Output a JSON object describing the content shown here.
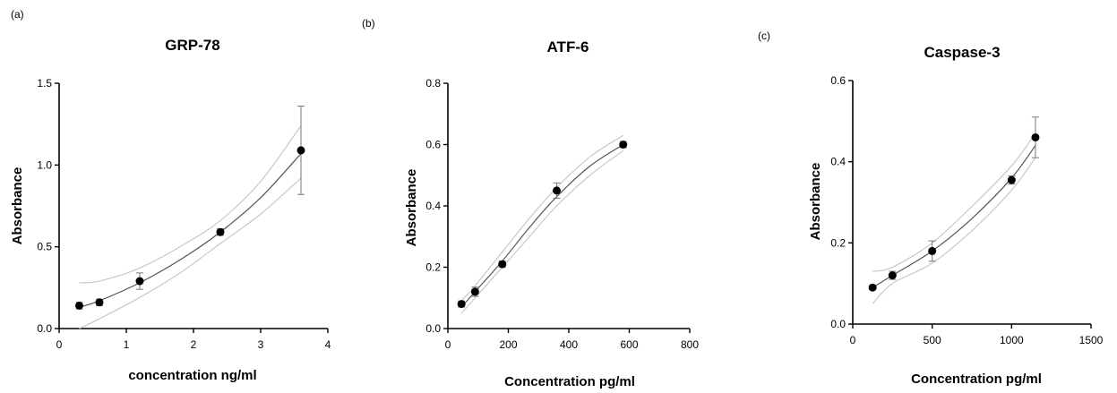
{
  "chart_data": [
    {
      "type": "scatter",
      "panel_label": "(a)",
      "title": "GRP-78",
      "xlabel": "concentration ng/ml",
      "ylabel": "Absorbance",
      "xlim": [
        0,
        4
      ],
      "ylim": [
        0,
        1.5
      ],
      "xticks": [
        0,
        1,
        2,
        3,
        4
      ],
      "xtick_labels": [
        "0",
        "1",
        "2",
        "3",
        "4"
      ],
      "yticks": [
        0,
        0.5,
        1.0,
        1.5
      ],
      "ytick_labels": [
        "0.0",
        "0.5",
        "1.0",
        "1.5"
      ],
      "grid": false,
      "points": [
        {
          "x": 0.3,
          "y": 0.14,
          "err": 0.02
        },
        {
          "x": 0.6,
          "y": 0.16,
          "err": 0.02
        },
        {
          "x": 1.2,
          "y": 0.29,
          "err": 0.05
        },
        {
          "x": 2.4,
          "y": 0.59,
          "err": 0.02
        },
        {
          "x": 3.6,
          "y": 1.09,
          "err": 0.27
        }
      ],
      "fit": {
        "x": [
          0.3,
          0.6,
          1.2,
          1.8,
          2.4,
          3.0,
          3.6
        ],
        "y": [
          0.13,
          0.17,
          0.28,
          0.42,
          0.59,
          0.8,
          1.07
        ]
      },
      "upper_band": {
        "x": [
          0.3,
          0.6,
          1.2,
          1.8,
          2.4,
          3.0,
          3.6
        ],
        "y": [
          0.28,
          0.29,
          0.37,
          0.5,
          0.66,
          0.9,
          1.24
        ]
      },
      "lower_band": {
        "x": [
          0.3,
          0.6,
          1.2,
          1.8,
          2.4,
          3.0,
          3.6
        ],
        "y": [
          0.0,
          0.06,
          0.19,
          0.34,
          0.52,
          0.7,
          0.92
        ]
      }
    },
    {
      "type": "scatter",
      "panel_label": "(b)",
      "title": "ATF-6",
      "xlabel": "Concentration pg/ml",
      "ylabel": "Absorbance",
      "xlim": [
        0,
        800
      ],
      "ylim": [
        0,
        0.8
      ],
      "xticks": [
        0,
        200,
        400,
        600,
        800
      ],
      "xtick_labels": [
        "0",
        "200",
        "400",
        "600",
        "800"
      ],
      "yticks": [
        0,
        0.2,
        0.4,
        0.6,
        0.8
      ],
      "ytick_labels": [
        "0.0",
        "0.2",
        "0.4",
        "0.6",
        "0.8"
      ],
      "grid": false,
      "points": [
        {
          "x": 45,
          "y": 0.08,
          "err": 0.01
        },
        {
          "x": 90,
          "y": 0.12,
          "err": 0.015
        },
        {
          "x": 180,
          "y": 0.21,
          "err": 0.01
        },
        {
          "x": 360,
          "y": 0.45,
          "err": 0.025
        },
        {
          "x": 580,
          "y": 0.6,
          "err": 0.01
        }
      ],
      "fit": {
        "x": [
          45,
          90,
          180,
          270,
          360,
          470,
          580
        ],
        "y": [
          0.07,
          0.12,
          0.22,
          0.33,
          0.43,
          0.53,
          0.6
        ]
      },
      "upper_band": {
        "x": [
          45,
          90,
          180,
          270,
          360,
          470,
          580
        ],
        "y": [
          0.09,
          0.14,
          0.25,
          0.36,
          0.46,
          0.56,
          0.63
        ]
      },
      "lower_band": {
        "x": [
          45,
          90,
          180,
          270,
          360,
          470,
          580
        ],
        "y": [
          0.05,
          0.1,
          0.2,
          0.3,
          0.4,
          0.5,
          0.58
        ]
      }
    },
    {
      "type": "scatter",
      "panel_label": "(c)",
      "title": "Caspase-3",
      "xlabel": "Concentration pg/ml",
      "ylabel": "Absorbance",
      "xlim": [
        0,
        1500
      ],
      "ylim": [
        0,
        0.6
      ],
      "xticks": [
        0,
        500,
        1000,
        1500
      ],
      "xtick_labels": [
        "0",
        "500",
        "1000",
        "1500"
      ],
      "yticks": [
        0,
        0.2,
        0.4,
        0.6
      ],
      "ytick_labels": [
        "0.0",
        "0.2",
        "0.4",
        "0.6"
      ],
      "grid": false,
      "points": [
        {
          "x": 125,
          "y": 0.09,
          "err": 0.005
        },
        {
          "x": 250,
          "y": 0.12,
          "err": 0.01
        },
        {
          "x": 500,
          "y": 0.18,
          "err": 0.025
        },
        {
          "x": 1000,
          "y": 0.355,
          "err": 0.01
        },
        {
          "x": 1150,
          "y": 0.46,
          "err": 0.05
        }
      ],
      "fit": {
        "x": [
          125,
          250,
          500,
          750,
          1000,
          1150
        ],
        "y": [
          0.09,
          0.12,
          0.18,
          0.26,
          0.36,
          0.44
        ]
      },
      "upper_band": {
        "x": [
          125,
          250,
          500,
          750,
          1000,
          1150
        ],
        "y": [
          0.13,
          0.14,
          0.2,
          0.29,
          0.39,
          0.47
        ]
      },
      "lower_band": {
        "x": [
          125,
          250,
          500,
          750,
          1000,
          1150
        ],
        "y": [
          0.05,
          0.1,
          0.15,
          0.23,
          0.33,
          0.41
        ]
      }
    }
  ]
}
